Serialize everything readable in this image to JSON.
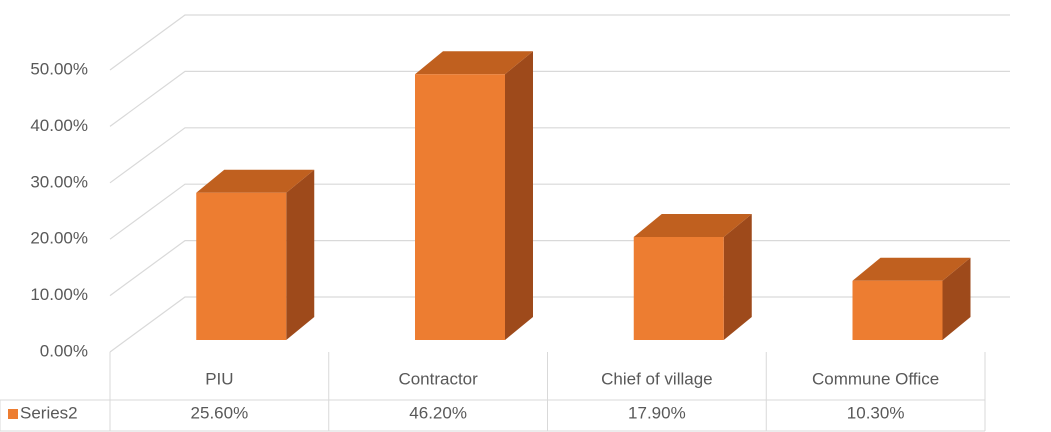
{
  "chart_data": {
    "type": "bar3d",
    "categories": [
      "PIU",
      "Contractor",
      "Chief of village",
      "Commune Office"
    ],
    "series": [
      {
        "name": "Series2",
        "color": "#ED7D31",
        "values": [
          25.6,
          46.2,
          17.9,
          10.3
        ],
        "value_labels": [
          "25.60%",
          "46.20%",
          "17.90%",
          "10.30%"
        ]
      }
    ],
    "ylim": [
      0,
      50
    ],
    "yticks": [
      {
        "value": 0,
        "label": "0.00%"
      },
      {
        "value": 10,
        "label": "10.00%"
      },
      {
        "value": 20,
        "label": "20.00%"
      },
      {
        "value": 30,
        "label": "30.00%"
      },
      {
        "value": 40,
        "label": "40.00%"
      },
      {
        "value": 50,
        "label": "50.00%"
      }
    ],
    "grid": true,
    "data_table": true
  }
}
